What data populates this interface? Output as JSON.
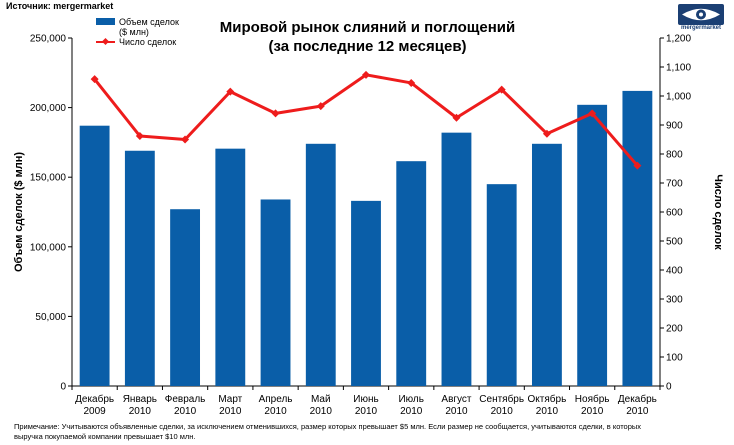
{
  "source": "Источник: mergermarket",
  "logo": {
    "text": "mergermarket",
    "icon": "eye-logo-icon"
  },
  "title": {
    "line1": "Мировой рынок слияний и поглощений",
    "line2": "(за последние 12 месяцев)"
  },
  "legend": {
    "bars_label": "Объем сделок ($ млн)",
    "line_label": "Число сделок"
  },
  "note": "Примечание: Учитываются объявленные сделки, за исключением отменившихся, размер которых превышает $5 млн. Если размер не сообщается, учитываются сделки, в которых выручка покупаемой компании превышает $10 млн.",
  "colors": {
    "bars": "#0a5ea8",
    "line": "#ee1c1c"
  },
  "chart_data": {
    "type": "bar",
    "categories": [
      [
        "Декабрь",
        "2009"
      ],
      [
        "Январь",
        "2010"
      ],
      [
        "Февраль",
        "2010"
      ],
      [
        "Март",
        "2010"
      ],
      [
        "Апрель",
        "2010"
      ],
      [
        "Май",
        "2010"
      ],
      [
        "Июнь",
        "2010"
      ],
      [
        "Июль",
        "2010"
      ],
      [
        "Август",
        "2010"
      ],
      [
        "Сентябрь",
        "2010"
      ],
      [
        "Октябрь",
        "2010"
      ],
      [
        "Ноябрь",
        "2010"
      ],
      [
        "Декабрь",
        "2010"
      ]
    ],
    "series": [
      {
        "name": "Объем сделок ($ млн)",
        "type": "bar",
        "axis": "left",
        "values": [
          187000,
          169000,
          127000,
          170500,
          134000,
          174000,
          133000,
          161500,
          182000,
          145000,
          174000,
          202000,
          212000
        ]
      },
      {
        "name": "Число сделок",
        "type": "line",
        "axis": "right",
        "values": [
          1058,
          862,
          850,
          1015,
          940,
          965,
          1073,
          1045,
          925,
          1022,
          870,
          940,
          760
        ]
      }
    ],
    "ylabel": "Объем сделок ($ млн)",
    "ylim": [
      0,
      250000
    ],
    "yticks": [
      "0",
      "50,000",
      "100,000",
      "150,000",
      "200,000",
      "250,000"
    ],
    "y2label": "Число сделок",
    "y2lim": [
      0,
      1200
    ],
    "y2ticks": [
      "0",
      "100",
      "200",
      "300",
      "400",
      "500",
      "600",
      "700",
      "800",
      "900",
      "1,000",
      "1,100",
      "1,200"
    ],
    "grid": false,
    "legend_position": "top-left"
  }
}
